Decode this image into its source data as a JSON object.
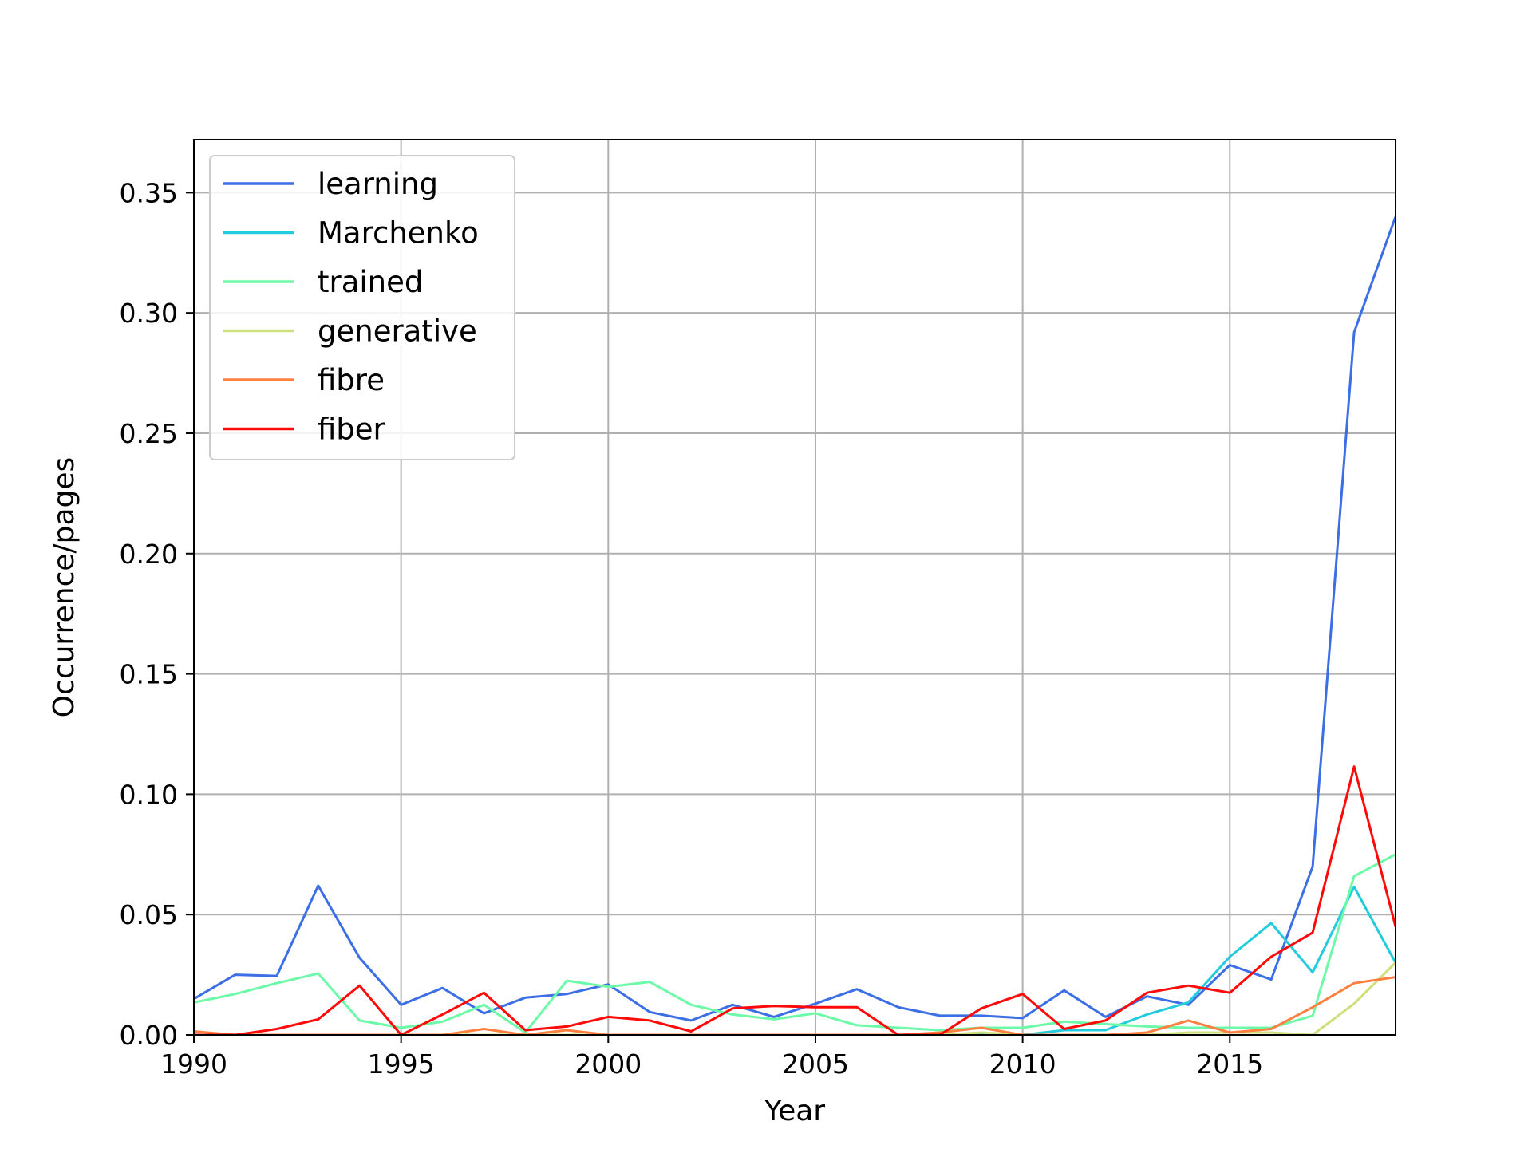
{
  "chart_data": {
    "type": "line",
    "title": "",
    "xlabel": "Year",
    "ylabel": "Occurrence/pages",
    "xlim": [
      1990,
      2019
    ],
    "ylim": [
      0,
      0.372
    ],
    "xticks": [
      1990,
      1995,
      2000,
      2005,
      2010,
      2015
    ],
    "xtick_labels": [
      "1990",
      "1995",
      "2000",
      "2005",
      "2010",
      "2015"
    ],
    "yticks": [
      0,
      0.05,
      0.1,
      0.15,
      0.2,
      0.25,
      0.3,
      0.35
    ],
    "ytick_labels": [
      "0.00",
      "0.05",
      "0.10",
      "0.15",
      "0.20",
      "0.25",
      "0.30",
      "0.35"
    ],
    "grid": true,
    "legend_position": "top-left",
    "x": [
      1990,
      1991,
      1992,
      1993,
      1994,
      1995,
      1996,
      1997,
      1998,
      1999,
      2000,
      2001,
      2002,
      2003,
      2004,
      2005,
      2006,
      2007,
      2008,
      2009,
      2010,
      2011,
      2012,
      2013,
      2014,
      2015,
      2016,
      2017,
      2018,
      2019
    ],
    "series": [
      {
        "name": "learning",
        "color": "#3c6ee6",
        "values": [
          0.015,
          0.025,
          0.0245,
          0.062,
          0.032,
          0.0125,
          0.0195,
          0.009,
          0.0155,
          0.017,
          0.021,
          0.0095,
          0.006,
          0.0125,
          0.0075,
          0.013,
          0.019,
          0.0115,
          0.008,
          0.008,
          0.007,
          0.0185,
          0.0075,
          0.016,
          0.0125,
          0.029,
          0.023,
          0.07,
          0.292,
          0.34
        ]
      },
      {
        "name": "Marchenko",
        "color": "#22ccdd",
        "values": [
          0,
          0,
          0,
          0,
          0,
          0,
          0,
          0,
          0,
          0,
          0,
          0,
          0,
          0,
          0,
          0,
          0,
          0,
          0,
          0,
          0,
          0.002,
          0.002,
          0.0085,
          0.0135,
          0.0325,
          0.0465,
          0.026,
          0.0615,
          0.03
        ]
      },
      {
        "name": "trained",
        "color": "#6dfaa8",
        "values": [
          0.0135,
          0.017,
          0.0215,
          0.0255,
          0.006,
          0.003,
          0.0055,
          0.0125,
          0.001,
          0.0225,
          0.02,
          0.022,
          0.0125,
          0.0085,
          0.0065,
          0.009,
          0.004,
          0.003,
          0.002,
          0.003,
          0.003,
          0.0055,
          0.0045,
          0.0035,
          0.003,
          0.003,
          0.003,
          0.008,
          0.066,
          0.075
        ]
      },
      {
        "name": "generative",
        "color": "#cde07a",
        "values": [
          0,
          0,
          0,
          0,
          0,
          0,
          0,
          0,
          0,
          0,
          0,
          0,
          0,
          0,
          0,
          0,
          0,
          0,
          0,
          0.001,
          0,
          0,
          0,
          0,
          0.001,
          0.001,
          0.001,
          0,
          0.013,
          0.03
        ]
      },
      {
        "name": "fibre",
        "color": "#ff8040",
        "values": [
          0.0015,
          0,
          0,
          0,
          0,
          0,
          0,
          0.0025,
          0,
          0.002,
          0,
          0,
          0,
          0,
          0,
          0,
          0,
          0,
          0.001,
          0.003,
          0,
          0,
          0,
          0.001,
          0.006,
          0.001,
          0.0025,
          0.0115,
          0.0215,
          0.024
        ]
      },
      {
        "name": "fiber",
        "color": "#ff0a0a",
        "values": [
          0,
          0,
          0.0025,
          0.0065,
          0.0205,
          0,
          0.0085,
          0.0175,
          0.002,
          0.0035,
          0.0075,
          0.006,
          0.0015,
          0.011,
          0.012,
          0.0115,
          0.0115,
          0,
          0,
          0.011,
          0.017,
          0.0025,
          0.006,
          0.0175,
          0.0205,
          0.0175,
          0.0325,
          0.0425,
          0.1115,
          0.045
        ]
      }
    ]
  }
}
